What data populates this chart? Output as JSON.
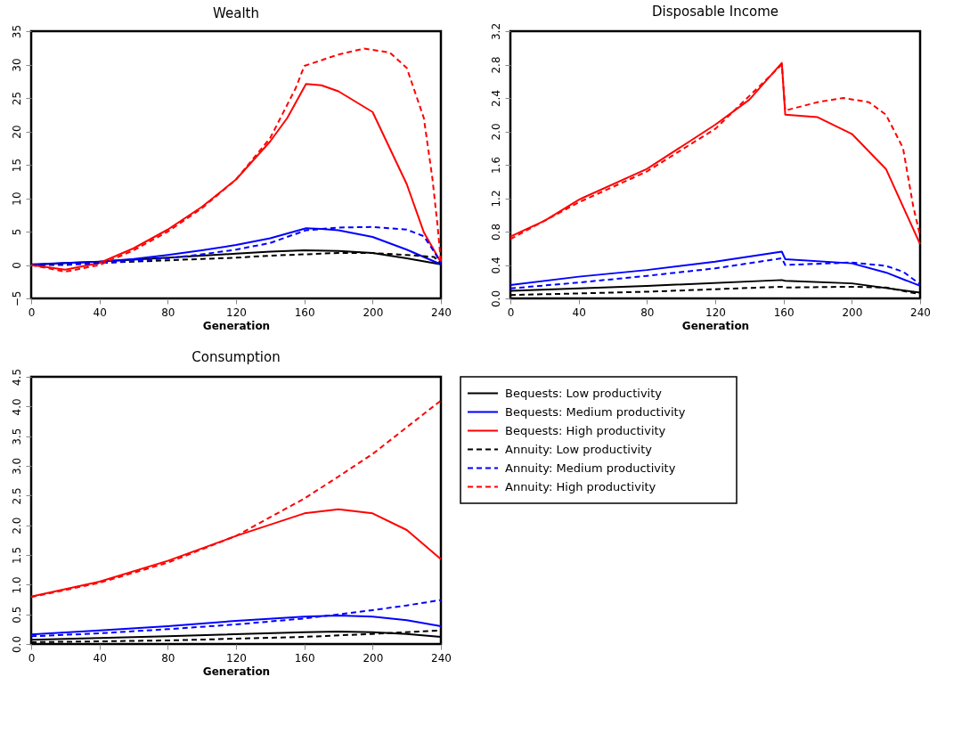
{
  "chart_data": [
    {
      "type": "line",
      "title": "Wealth",
      "xlabel": "Generation",
      "xlim": [
        0,
        240
      ],
      "xticks": [
        0,
        40,
        80,
        120,
        160,
        200,
        240
      ],
      "ylim": [
        -5,
        35
      ],
      "yticks": [
        -5,
        0,
        5,
        10,
        15,
        20,
        25,
        30,
        35
      ],
      "grid": false,
      "legend": false,
      "series": [
        {
          "color": "#000000",
          "line_style": "solid",
          "x": [
            0,
            20,
            40,
            60,
            80,
            100,
            120,
            140,
            160,
            180,
            200,
            220,
            240
          ],
          "values": [
            0,
            0.3,
            0.5,
            0.8,
            1.1,
            1.4,
            1.7,
            2.0,
            2.2,
            2.1,
            1.8,
            1.0,
            0.1
          ]
        },
        {
          "color": "#0000ff",
          "line_style": "solid",
          "x": [
            0,
            20,
            40,
            60,
            80,
            100,
            120,
            140,
            161,
            170,
            180,
            200,
            220,
            240
          ],
          "values": [
            0.1,
            0.3,
            0.5,
            0.9,
            1.5,
            2.2,
            3.0,
            4.0,
            5.5,
            5.4,
            5.2,
            4.2,
            2.3,
            0.1
          ]
        },
        {
          "color": "#ff0000",
          "line_style": "solid",
          "x": [
            0,
            20,
            40,
            60,
            80,
            100,
            120,
            140,
            150,
            161,
            170,
            180,
            200,
            220,
            230,
            240
          ],
          "values": [
            0,
            -0.7,
            0.3,
            2.5,
            5.3,
            8.7,
            12.8,
            18.5,
            22,
            27.1,
            26.9,
            26,
            22.9,
            12.1,
            4.9,
            0.4
          ]
        },
        {
          "color": "#000000",
          "line_style": "dashed",
          "x": [
            0,
            20,
            40,
            60,
            80,
            100,
            120,
            140,
            160,
            180,
            200,
            220,
            236,
            240
          ],
          "values": [
            0,
            0.1,
            0.3,
            0.5,
            0.7,
            0.9,
            1.1,
            1.4,
            1.6,
            1.8,
            1.8,
            1.5,
            1.2,
            0.2
          ]
        },
        {
          "color": "#0000ff",
          "line_style": "dashed",
          "x": [
            0,
            20,
            40,
            60,
            80,
            100,
            120,
            140,
            161,
            180,
            200,
            220,
            230,
            236,
            240
          ],
          "values": [
            0,
            0,
            0.3,
            0.6,
            1.0,
            1.6,
            2.3,
            3.3,
            5.2,
            5.6,
            5.7,
            5.3,
            4.3,
            2.0,
            0.3
          ]
        },
        {
          "color": "#ff0000",
          "line_style": "dashed",
          "x": [
            0,
            20,
            40,
            60,
            80,
            100,
            120,
            140,
            155,
            160,
            180,
            195,
            210,
            220,
            230,
            235,
            238,
            240
          ],
          "values": [
            0,
            -1,
            0,
            2.2,
            5,
            8.5,
            12.8,
            19,
            26.5,
            29.8,
            31.5,
            32.4,
            31.8,
            29.5,
            22,
            13,
            6,
            0.5
          ]
        }
      ]
    },
    {
      "type": "line",
      "title": "Disposable Income",
      "xlabel": "Generation",
      "xlim": [
        0,
        240
      ],
      "xticks": [
        0,
        40,
        80,
        120,
        160,
        200,
        240
      ],
      "ylim": [
        0,
        3.2
      ],
      "yticks": [
        {
          "value": 0,
          "label": "0.0"
        },
        0.4,
        0.8,
        1.2,
        1.6,
        {
          "value": 2,
          "label": "2.0"
        },
        2.4,
        2.8,
        3.2
      ],
      "grid": false,
      "legend": false,
      "series": [
        {
          "color": "#000000",
          "line_style": "solid",
          "x": [
            0,
            80,
            159,
            161,
            200,
            240
          ],
          "values": [
            0.09,
            0.15,
            0.22,
            0.21,
            0.18,
            0.07
          ]
        },
        {
          "color": "#0000ff",
          "line_style": "solid",
          "x": [
            0,
            40,
            80,
            120,
            159,
            161,
            200,
            220,
            240
          ],
          "values": [
            0.16,
            0.26,
            0.34,
            0.44,
            0.56,
            0.47,
            0.42,
            0.31,
            0.15
          ]
        },
        {
          "color": "#ff0000",
          "line_style": "solid",
          "x": [
            0,
            20,
            40,
            42,
            80,
            120,
            140,
            159,
            161,
            180,
            200,
            220,
            240
          ],
          "values": [
            0.74,
            0.93,
            1.18,
            1.2,
            1.55,
            2.08,
            2.38,
            2.82,
            2.2,
            2.17,
            1.97,
            1.55,
            0.65
          ]
        },
        {
          "color": "#000000",
          "line_style": "dashed",
          "x": [
            0,
            80,
            159,
            161,
            200,
            220,
            240
          ],
          "values": [
            0.04,
            0.08,
            0.14,
            0.13,
            0.14,
            0.13,
            0.05
          ]
        },
        {
          "color": "#0000ff",
          "line_style": "dashed",
          "x": [
            0,
            40,
            80,
            120,
            159,
            161,
            200,
            220,
            230,
            240
          ],
          "values": [
            0.12,
            0.19,
            0.27,
            0.36,
            0.48,
            0.4,
            0.43,
            0.39,
            0.32,
            0.17
          ]
        },
        {
          "color": "#ff0000",
          "line_style": "dashed",
          "x": [
            0,
            40,
            80,
            120,
            159,
            161,
            180,
            195,
            210,
            220,
            230,
            236,
            240
          ],
          "values": [
            0.71,
            1.15,
            1.52,
            2.03,
            2.8,
            2.25,
            2.35,
            2.4,
            2.35,
            2.2,
            1.8,
            1.1,
            0.75
          ]
        }
      ]
    },
    {
      "type": "line",
      "title": "Consumption",
      "xlabel": "Generation",
      "xlim": [
        0,
        240
      ],
      "xticks": [
        0,
        40,
        80,
        120,
        160,
        200,
        240
      ],
      "ylim": [
        0,
        4.5
      ],
      "yticks": [
        {
          "value": 0,
          "label": "0.0"
        },
        0.5,
        {
          "value": 1,
          "label": "1.0"
        },
        1.5,
        {
          "value": 2,
          "label": "2.0"
        },
        2.5,
        {
          "value": 3,
          "label": "3.0"
        },
        3.5,
        {
          "value": 4,
          "label": "4.0"
        },
        4.5
      ],
      "grid": false,
      "legend": "right",
      "series": [
        {
          "name": "Bequests: Low productivity",
          "color": "#000000",
          "line_style": "solid",
          "x": [
            0,
            80,
            160,
            180,
            200,
            220,
            240
          ],
          "values": [
            0.07,
            0.13,
            0.2,
            0.21,
            0.2,
            0.17,
            0.12
          ]
        },
        {
          "name": "Bequests: Medium productivity",
          "color": "#0000ff",
          "line_style": "solid",
          "x": [
            0,
            40,
            80,
            120,
            160,
            180,
            200,
            220,
            240
          ],
          "values": [
            0.16,
            0.23,
            0.3,
            0.39,
            0.46,
            0.48,
            0.46,
            0.4,
            0.3
          ]
        },
        {
          "name": "Bequests: High productivity",
          "color": "#ff0000",
          "line_style": "solid",
          "x": [
            0,
            40,
            80,
            120,
            160,
            180,
            200,
            220,
            240
          ],
          "values": [
            0.8,
            1.05,
            1.4,
            1.82,
            2.2,
            2.27,
            2.2,
            1.92,
            1.43
          ]
        },
        {
          "name": "Annuity: Low productivity",
          "color": "#000000",
          "line_style": "dashed",
          "x": [
            0,
            80,
            160,
            200,
            240
          ],
          "values": [
            0.03,
            0.06,
            0.12,
            0.17,
            0.23
          ]
        },
        {
          "name": "Annuity: Medium productivity",
          "color": "#0000ff",
          "line_style": "dashed",
          "x": [
            0,
            40,
            80,
            120,
            160,
            180,
            200,
            220,
            240
          ],
          "values": [
            0.13,
            0.18,
            0.25,
            0.33,
            0.43,
            0.5,
            0.57,
            0.65,
            0.74
          ]
        },
        {
          "name": "Annuity: High productivity",
          "color": "#ff0000",
          "line_style": "dashed",
          "x": [
            0,
            40,
            80,
            120,
            160,
            180,
            200,
            220,
            240
          ],
          "values": [
            0.79,
            1.03,
            1.37,
            1.82,
            2.45,
            2.82,
            3.2,
            3.65,
            4.1
          ]
        }
      ]
    }
  ]
}
